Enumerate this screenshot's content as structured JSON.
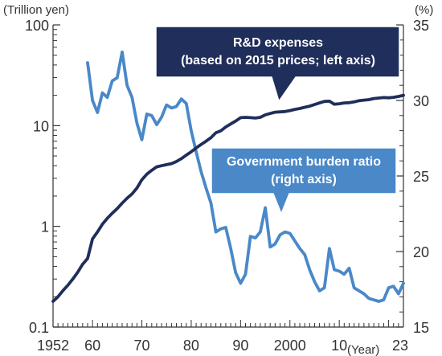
{
  "chart_data": {
    "type": "line",
    "title": "",
    "left_axis_unit": "(Trillion yen)",
    "right_axis_unit": "(%)",
    "x_axis_unit": "(Year)",
    "x_range": [
      1952,
      2023
    ],
    "left_axis": {
      "scale": "log",
      "range": [
        0.1,
        100
      ],
      "ticks": [
        {
          "value": 0.1,
          "label": "0.1"
        },
        {
          "value": 1,
          "label": "1"
        },
        {
          "value": 10,
          "label": "10"
        },
        {
          "value": 100,
          "label": "100"
        }
      ]
    },
    "right_axis": {
      "scale": "linear",
      "range": [
        15,
        35
      ],
      "ticks": [
        {
          "value": 15,
          "label": "15"
        },
        {
          "value": 20,
          "label": "20"
        },
        {
          "value": 25,
          "label": "25"
        },
        {
          "value": 30,
          "label": "30"
        },
        {
          "value": 35,
          "label": "35"
        }
      ]
    },
    "x_ticks": [
      {
        "value": 1952,
        "label": "1952"
      },
      {
        "value": 1960,
        "label": "60"
      },
      {
        "value": 1970,
        "label": "70"
      },
      {
        "value": 1980,
        "label": "80"
      },
      {
        "value": 1990,
        "label": "90"
      },
      {
        "value": 2000,
        "label": "2000"
      },
      {
        "value": 2010,
        "label": "10"
      },
      {
        "value": 2023,
        "label": "23"
      }
    ],
    "grid": false,
    "series": [
      {
        "name": "R&D expenses",
        "axis": "left",
        "color": "#1f2e5a",
        "x": [
          1952,
          1953,
          1954,
          1955,
          1956,
          1957,
          1958,
          1959,
          1960,
          1961,
          1962,
          1963,
          1964,
          1965,
          1966,
          1967,
          1968,
          1969,
          1970,
          1971,
          1972,
          1973,
          1974,
          1975,
          1976,
          1977,
          1978,
          1979,
          1980,
          1981,
          1982,
          1983,
          1984,
          1985,
          1986,
          1987,
          1988,
          1989,
          1990,
          1991,
          1992,
          1993,
          1994,
          1995,
          1996,
          1997,
          1998,
          1999,
          2000,
          2001,
          2002,
          2003,
          2004,
          2005,
          2006,
          2007,
          2008,
          2009,
          2010,
          2011,
          2012,
          2013,
          2014,
          2015,
          2016,
          2017,
          2018,
          2019,
          2020,
          2021,
          2022,
          2023
        ],
        "y": [
          0.18,
          0.2,
          0.23,
          0.26,
          0.3,
          0.35,
          0.42,
          0.48,
          0.75,
          0.88,
          1.05,
          1.2,
          1.35,
          1.5,
          1.7,
          1.9,
          2.1,
          2.4,
          2.9,
          3.3,
          3.6,
          3.9,
          4.0,
          4.1,
          4.2,
          4.4,
          4.7,
          5.1,
          5.5,
          6.0,
          6.5,
          7.0,
          7.6,
          8.5,
          8.9,
          9.7,
          10.4,
          11.1,
          12.0,
          12.1,
          12.0,
          11.9,
          12.1,
          12.8,
          13.2,
          13.6,
          13.7,
          13.8,
          14.1,
          14.5,
          14.8,
          15.2,
          15.6,
          16.2,
          16.8,
          17.4,
          17.5,
          16.3,
          16.5,
          16.8,
          16.9,
          17.2,
          17.7,
          17.9,
          18.1,
          18.6,
          18.8,
          19.0,
          18.9,
          19.1,
          19.5,
          20.0
        ]
      },
      {
        "name": "Government burden ratio",
        "axis": "right",
        "color": "#4a88c8",
        "x": [
          1959,
          1960,
          1961,
          1962,
          1963,
          1964,
          1965,
          1966,
          1967,
          1968,
          1969,
          1970,
          1971,
          1972,
          1973,
          1974,
          1975,
          1976,
          1977,
          1978,
          1979,
          1980,
          1981,
          1982,
          1983,
          1984,
          1985,
          1986,
          1987,
          1988,
          1989,
          1990,
          1991,
          1992,
          1993,
          1994,
          1995,
          1996,
          1997,
          1998,
          1999,
          2000,
          2001,
          2002,
          2003,
          2004,
          2005,
          2006,
          2007,
          2008,
          2009,
          2010,
          2011,
          2012,
          2013,
          2014,
          2015,
          2016,
          2017,
          2018,
          2019,
          2020,
          2021,
          2022,
          2023
        ],
        "y": [
          32.5,
          30.0,
          29.2,
          30.5,
          30.2,
          31.3,
          31.5,
          33.2,
          31.0,
          30.2,
          28.5,
          27.4,
          29.1,
          29.0,
          28.4,
          28.9,
          29.7,
          29.5,
          29.6,
          30.1,
          29.8,
          28.0,
          26.6,
          25.3,
          24.2,
          23.2,
          21.3,
          21.5,
          21.6,
          20.2,
          18.6,
          17.9,
          18.5,
          21.0,
          20.9,
          21.3,
          22.9,
          20.3,
          20.5,
          21.1,
          21.3,
          21.2,
          20.7,
          20.2,
          19.8,
          18.8,
          18.0,
          17.4,
          17.6,
          20.2,
          18.8,
          18.7,
          18.5,
          18.9,
          17.6,
          17.4,
          17.2,
          16.9,
          16.8,
          16.7,
          16.8,
          17.6,
          17.7,
          17.2,
          17.9
        ]
      }
    ],
    "annotations": [
      {
        "series": "R&D expenses",
        "lines": [
          "R&D expenses",
          "(based on 2015 prices; left axis)"
        ]
      },
      {
        "series": "Government burden ratio",
        "lines": [
          "Government burden ratio",
          "(right axis)"
        ]
      }
    ]
  }
}
